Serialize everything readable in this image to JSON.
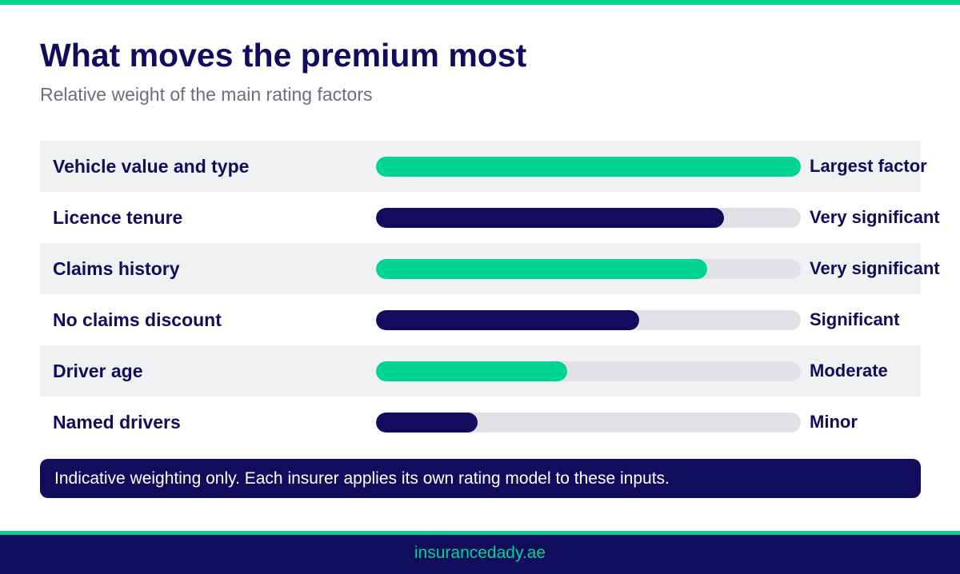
{
  "colors": {
    "accent_green": "#00d492",
    "navy": "#110d5c",
    "row_shade": "#f0f1f3",
    "track": "#e0e2e6",
    "subtitle_gray": "#6b6f7a"
  },
  "header": {
    "title": "What moves the premium most",
    "subtitle": "Relative weight of the main rating factors"
  },
  "chart_data": {
    "type": "bar",
    "orientation": "horizontal",
    "title": "What moves the premium most",
    "subtitle": "Relative weight of the main rating factors",
    "categories": [
      "Vehicle value and type",
      "Licence tenure",
      "Claims history",
      "No claims discount",
      "Driver age",
      "Named drivers"
    ],
    "values": [
      100,
      82,
      78,
      62,
      45,
      24
    ],
    "value_scale": "percent of largest factor (estimated from bar length)",
    "xlim": [
      0,
      100
    ],
    "labels": [
      "Largest factor",
      "Very significant",
      "Very significant",
      "Significant",
      "Moderate",
      "Minor"
    ],
    "bar_colors": [
      "#00d492",
      "#110d5c",
      "#00d492",
      "#110d5c",
      "#00d492",
      "#110d5c"
    ],
    "grid": false,
    "legend": "none"
  },
  "note": "Indicative weighting only. Each insurer applies its own rating model to these inputs.",
  "footer": {
    "site": "insurancedady.ae"
  }
}
